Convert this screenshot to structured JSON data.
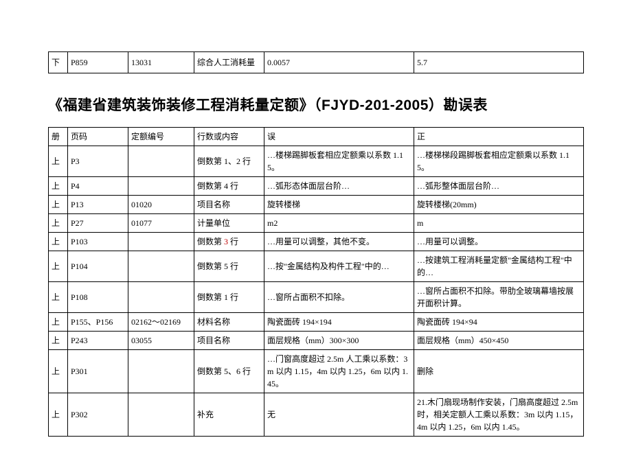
{
  "topRow": {
    "c1": "下",
    "c2": "P859",
    "c3": "13031",
    "c4": "综合人工消耗量",
    "c5": "0.0057",
    "c6": "5.7"
  },
  "title": "《福建省建筑装饰装修工程消耗量定额》（FJYD-201-2005）勘误表",
  "header": {
    "c1": "册",
    "c2": "页码",
    "c3": "定额编号",
    "c4": "行数或内容",
    "c5": "误",
    "c6": "正"
  },
  "rows": [
    {
      "c1": "上",
      "c2": "P3",
      "c3": "",
      "c4": "倒数第 1、2 行",
      "c5": "…楼梯踢脚板套相应定额乘以系数 1.15。",
      "c6": "…楼梯梯段踢脚板套相应定额乘以系数 1.15。"
    },
    {
      "c1": "上",
      "c2": "P4",
      "c3": "",
      "c4": "倒数第 4 行",
      "c5": "…弧形态体面层台阶…",
      "c6": "…弧形整体面层台阶…"
    },
    {
      "c1": "上",
      "c2": "P13",
      "c3": "01020",
      "c4": "项目名称",
      "c5": "旋转楼梯",
      "c6": "旋转楼梯(20mm)"
    },
    {
      "c1": "上",
      "c2": "P27",
      "c3": "01077",
      "c4": "计量单位",
      "c5": "m2",
      "c6": "m"
    },
    {
      "c1": "上",
      "c2": "P103",
      "c3": "",
      "c4": "倒数第 3 行",
      "c4red": "3",
      "c5": "…用量可以调整，其他不变。",
      "c6": "…用量可以调整。"
    },
    {
      "c1": "上",
      "c2": "P104",
      "c3": "",
      "c4": "倒数第 5 行",
      "c5": "…按\"金属结构及构件工程\"中的…",
      "c6": "…按建筑工程消耗量定额\"金属结构工程\"中的…"
    },
    {
      "c1": "上",
      "c2": "P108",
      "c3": "",
      "c4": "倒数第 1 行",
      "c5": "…窗所占面积不扣除。",
      "c6": "…窗所占面积不扣除。带肋全玻璃幕墙按展开面积计算。"
    },
    {
      "c1": "上",
      "c2": "P155、P156",
      "c3": "02162～02169",
      "c4": "材料名称",
      "c5": "陶瓷面砖 194×194",
      "c6": "陶瓷面砖 194×94"
    },
    {
      "c1": "上",
      "c2": "P243",
      "c3": "03055",
      "c4": "项目名称",
      "c5": "面层规格（mm）300×300",
      "c6": "面层规格（mm）450×450"
    },
    {
      "c1": "上",
      "c2": "P301",
      "c3": "",
      "c4": "倒数第 5、6 行",
      "c5": "…门窗高度超过 2.5m 人工乘以系数：3m 以内 1.15，4m 以内 1.25，6m 以内 1.45。",
      "c6": "删除"
    },
    {
      "c1": "上",
      "c2": "P302",
      "c3": "",
      "c4": "补充",
      "c5": "无",
      "c6": "21.木门扇现场制作安装，门扇高度超过 2.5m 时，相关定额人工乘以系数：3m 以内 1.15，4m 以内 1.25，6m 以内 1.45。"
    }
  ]
}
